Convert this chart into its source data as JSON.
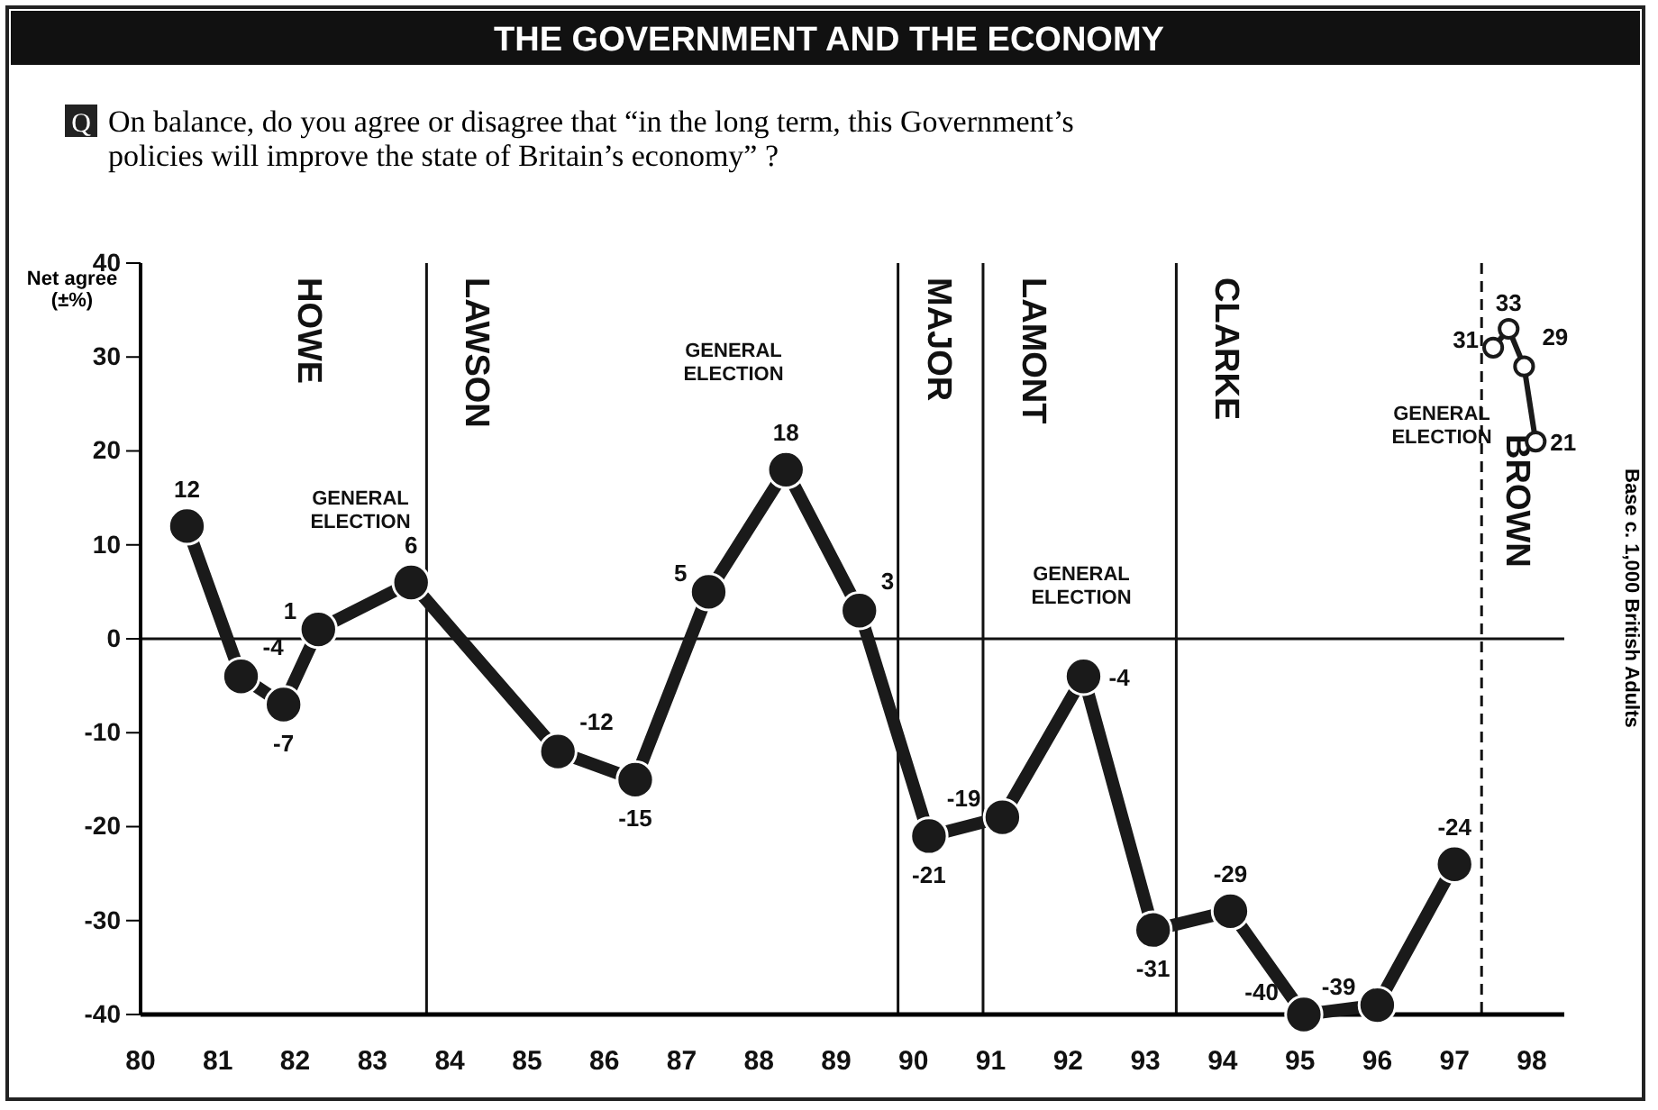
{
  "chart_data": {
    "type": "line",
    "title": "THE GOVERNMENT AND THE ECONOMY",
    "subtitle": "On balance, do you agree or disagree that “in the long term, this Government’s policies will improve the state of Britain’s economy” ?",
    "ylabel": "Net agree (±%)",
    "xlim": [
      80,
      98.42
    ],
    "xticks": [
      80,
      81,
      82,
      83,
      84,
      85,
      86,
      87,
      88,
      89,
      90,
      91,
      92,
      93,
      94,
      95,
      96,
      97,
      98
    ],
    "ylim": [
      -40,
      40
    ],
    "yticks": [
      -40,
      -30,
      -20,
      -10,
      0,
      10,
      20,
      30,
      40
    ],
    "grid": false,
    "marker": "circle",
    "data_labels": true,
    "series": [
      {
        "color": "#1a1a1a",
        "x": [
          80.6,
          81.3,
          81.85,
          82.3,
          83.5,
          85.4,
          86.4,
          87.35,
          88.35,
          89.3,
          90.2,
          91.15,
          92.2,
          93.1,
          94.1,
          95.05,
          96.0,
          97.0
        ],
        "values": [
          12,
          -4,
          -7,
          1,
          6,
          -12,
          -15,
          5,
          18,
          3,
          -21,
          -19,
          -4,
          -31,
          -29,
          -40,
          -39,
          -24
        ]
      },
      {
        "color": "#1a1a1a",
        "x": [
          97.5,
          97.7,
          97.9,
          98.05
        ],
        "values": [
          31,
          33,
          29,
          21
        ]
      }
    ],
    "ref_lines": [
      {
        "axis": "y",
        "value": 0,
        "label": null
      },
      {
        "axis": "x",
        "value": 83.7,
        "label": "LAWSON"
      },
      {
        "axis": "x",
        "value": 89.8,
        "label": "MAJOR"
      },
      {
        "axis": "x",
        "value": 90.9,
        "label": "LAMONT"
      },
      {
        "axis": "x",
        "value": 93.4,
        "label": "CLARKE"
      },
      {
        "axis": "x",
        "value": 97.35,
        "label": "BROWN",
        "line_style": "dashed"
      }
    ],
    "annotations": [
      "GENERAL ELECTION",
      "GENERAL ELECTION",
      "GENERAL ELECTION",
      "GENERAL ELECTION",
      "HOWE",
      "Q",
      "Base c. 1,000 British Adults"
    ]
  }
}
